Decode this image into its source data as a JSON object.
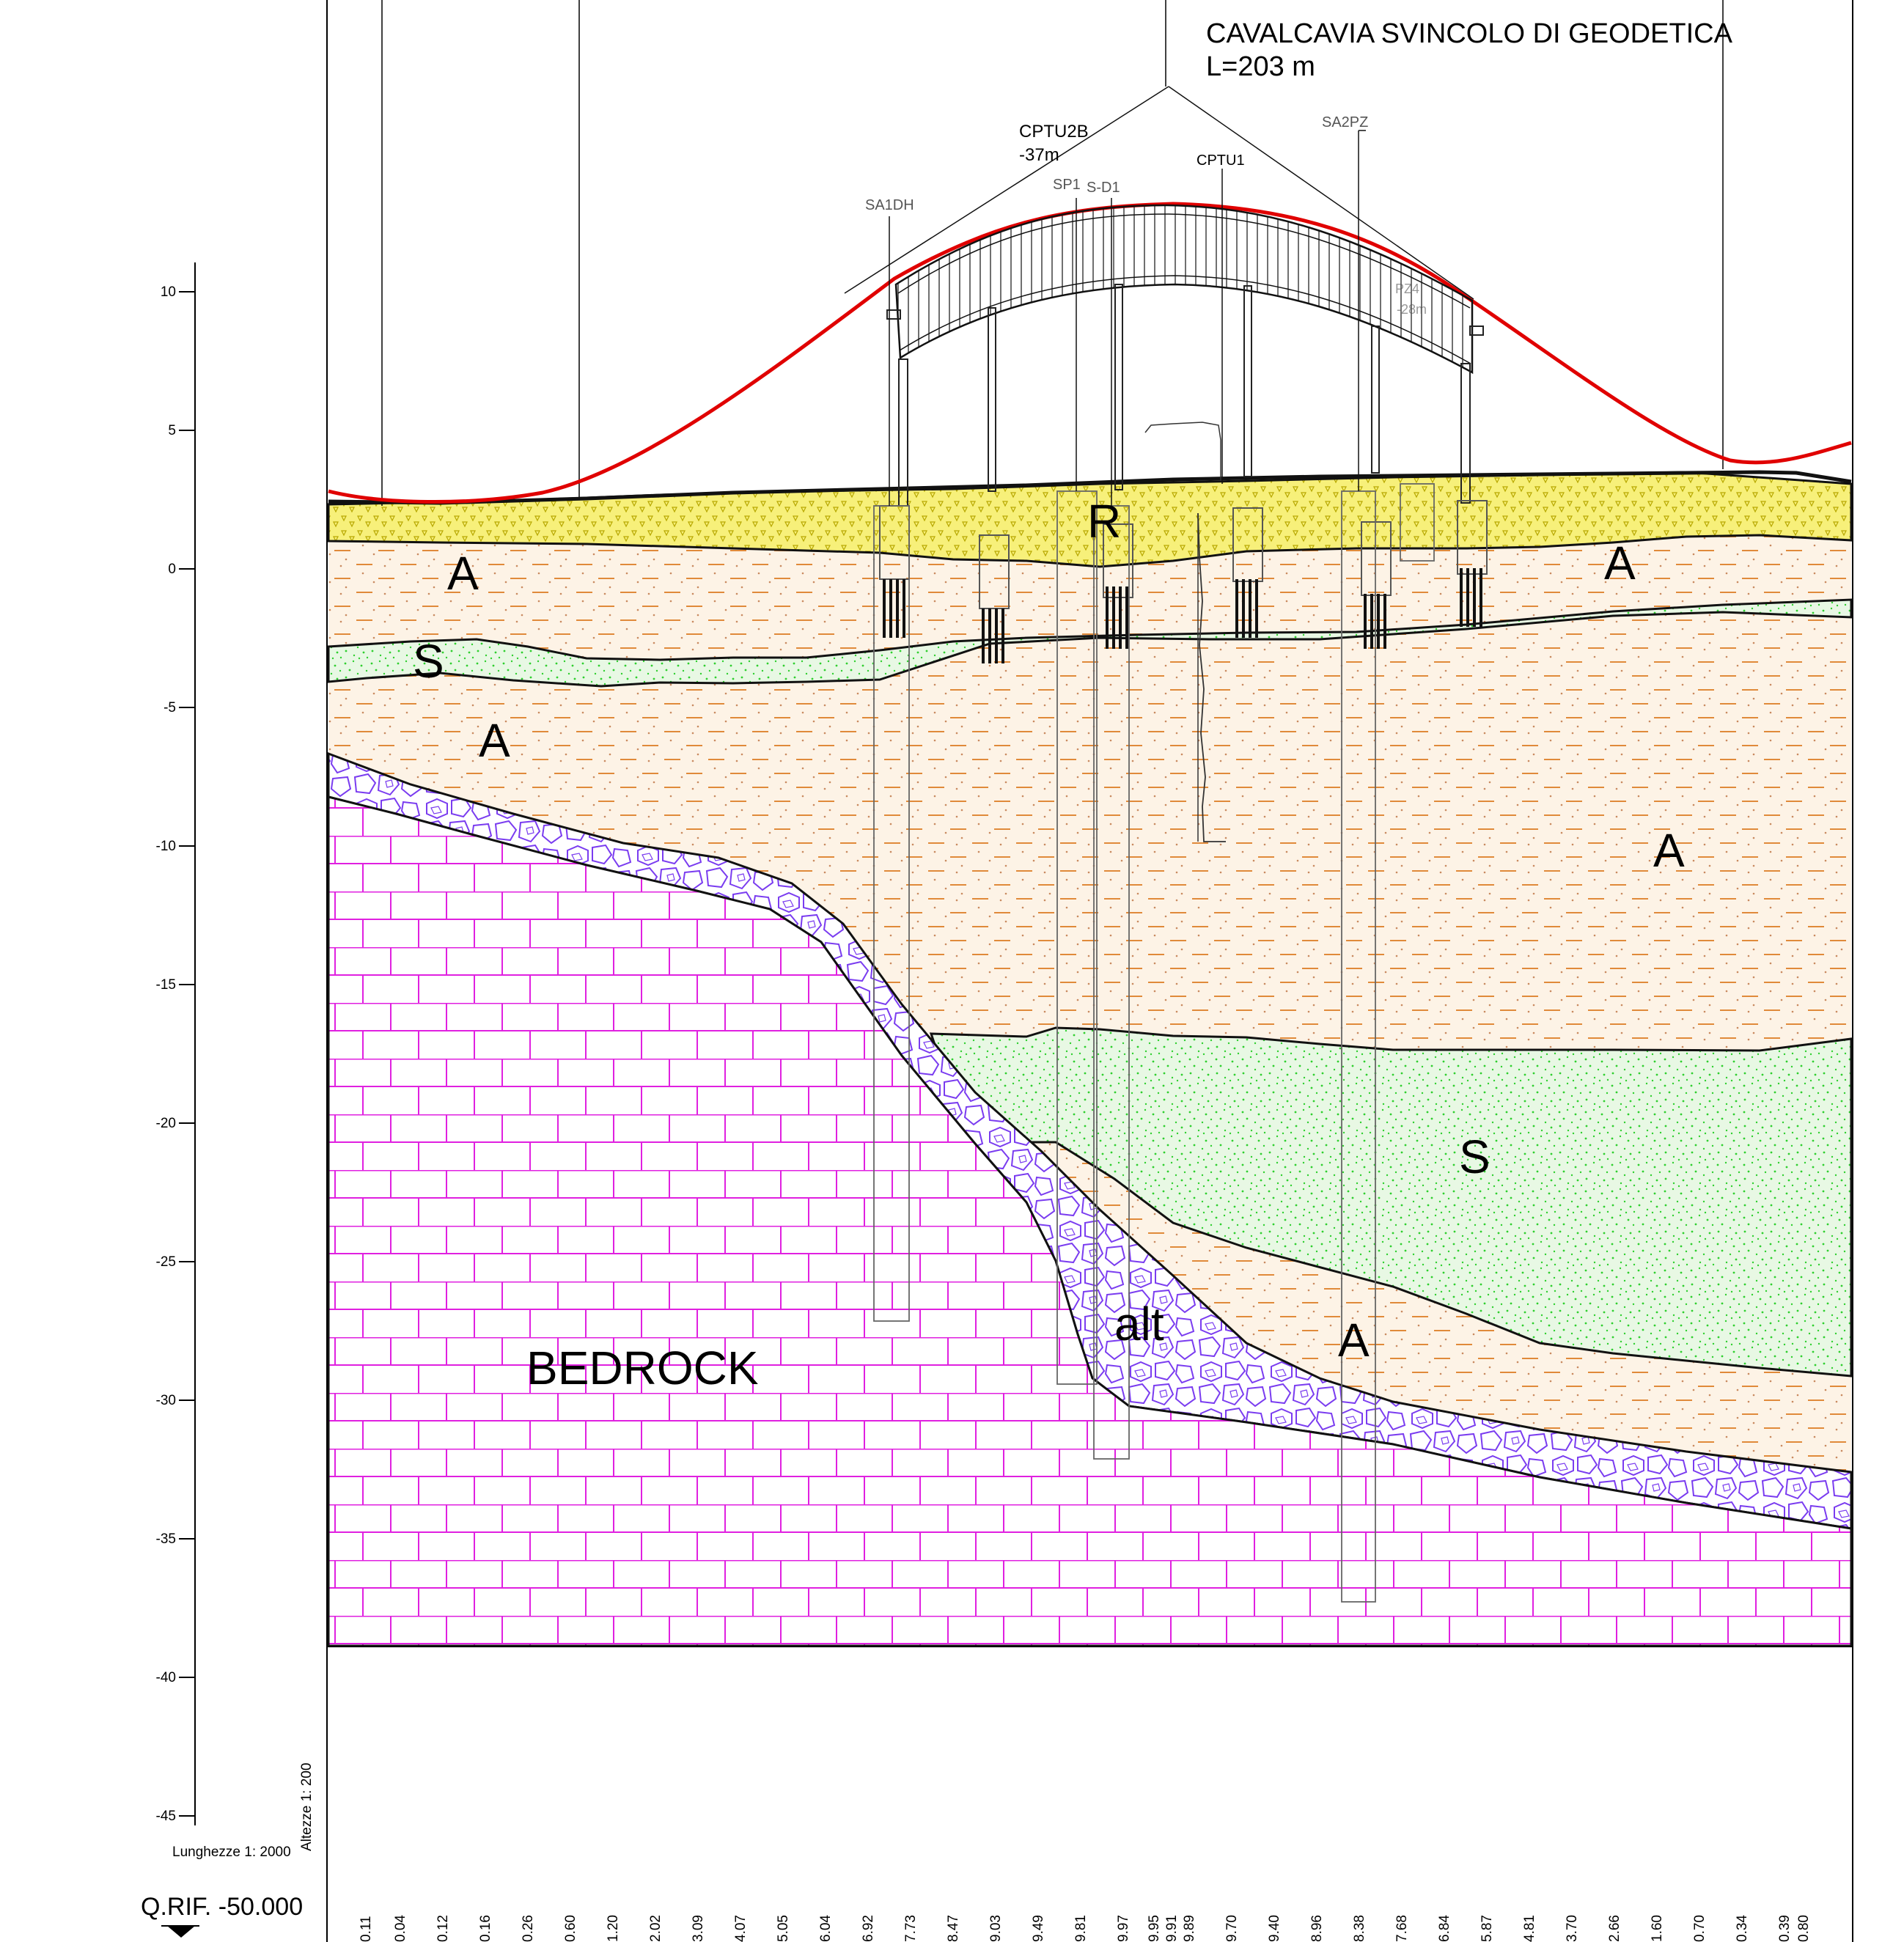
{
  "title": {
    "line1": "CAVALCAVIA SVINCOLO DI GEODETICA",
    "line2": "L=203 m"
  },
  "boreholes": [
    {
      "label": "CPTU2B",
      "sub": "-37m"
    },
    {
      "label": "SA1DH"
    },
    {
      "label": "SP1"
    },
    {
      "label": "S-D1"
    },
    {
      "label": "CPTU1"
    },
    {
      "label": "SA2PZ"
    },
    {
      "label": "PZ4",
      "sub": "-28m"
    }
  ],
  "strata_labels": {
    "r": "R",
    "a_top_left": "A",
    "a_top_right": "A",
    "s_top": "S",
    "a_mid": "A",
    "a_right": "A",
    "s_deep": "S",
    "alt": "alt",
    "a_bottom": "A",
    "bedrock": "BEDROCK"
  },
  "elevation_axis": {
    "ticks": [
      "10",
      "5",
      "0",
      "-5",
      "-10",
      "-15",
      "-20",
      "-25",
      "-30",
      "-35",
      "-40",
      "-45"
    ],
    "values": [
      10,
      5,
      0,
      -5,
      -10,
      -15,
      -20,
      -25,
      -30,
      -35,
      -40,
      -45
    ]
  },
  "scales": {
    "heights": "Altezze 1: 200",
    "lengths": "Lunghezze 1: 2000"
  },
  "reference_level": "Q.RIF. -50.000",
  "bottom_values": [
    "0.11",
    "0.04",
    "0.12",
    "0.16",
    "0.26",
    "0.60",
    "1.20",
    "2.02",
    "3.09",
    "4.07",
    "5.05",
    "6.04",
    "6.92",
    "7.73",
    "8.47",
    "9.03",
    "9.49",
    "9.81",
    "9.97",
    "9.95",
    "9.91",
    "9.89",
    "9.70",
    "9.40",
    "8.96",
    "8.38",
    "7.68",
    "6.84",
    "5.87",
    "4.81",
    "3.70",
    "2.66",
    "1.60",
    "0.70",
    "0.34",
    "0.39",
    "0.80"
  ],
  "colors": {
    "road_profile": "#e00000",
    "fill_layer": "#f7f07a",
    "clay": "#fdf3e6",
    "clay_dash": "#e08a3a",
    "sand": "#e8f8e4",
    "sand_dot": "#2fcf2f",
    "bedrock_line": "#e020e0",
    "weathered": "#7a3cf0"
  }
}
